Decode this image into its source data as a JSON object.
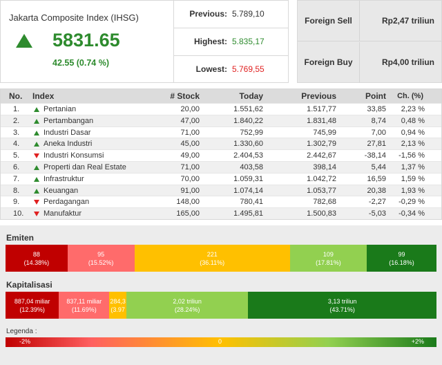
{
  "index": {
    "title": "Jakarta Composite Index (IHSG)",
    "value": "5831.65",
    "change": "42.55 (0.74 %)",
    "direction_icon": "up-triangle-icon"
  },
  "stats": [
    {
      "label": "Previous:",
      "value": "5.789,10",
      "color": "#333333"
    },
    {
      "label": "Highest:",
      "value": "5.835,17",
      "color": "#2e8b2e"
    },
    {
      "label": "Lowest:",
      "value": "5.769,55",
      "color": "#e02020"
    }
  ],
  "foreign": [
    {
      "label": "Foreign Sell",
      "value": "Rp2,47 triliun"
    },
    {
      "label": "Foreign Buy",
      "value": "Rp4,00 triliun"
    }
  ],
  "table": {
    "headers": {
      "no": "No.",
      "index": "Index",
      "stock": "# Stock",
      "today": "Today",
      "previous": "Previous",
      "point": "Point",
      "ch": "Ch. (%)"
    },
    "rows": [
      {
        "no": "1.",
        "dir": "up",
        "name": "Pertanian",
        "stock": "20,00",
        "today": "1.551,62",
        "previous": "1.517,77",
        "point": "33,85",
        "ch": "2,23 %"
      },
      {
        "no": "2.",
        "dir": "up",
        "name": "Pertambangan",
        "stock": "47,00",
        "today": "1.840,22",
        "previous": "1.831,48",
        "point": "8,74",
        "ch": "0,48 %"
      },
      {
        "no": "3.",
        "dir": "up",
        "name": "Industri Dasar",
        "stock": "71,00",
        "today": "752,99",
        "previous": "745,99",
        "point": "7,00",
        "ch": "0,94 %"
      },
      {
        "no": "4.",
        "dir": "up",
        "name": "Aneka Industri",
        "stock": "45,00",
        "today": "1.330,60",
        "previous": "1.302,79",
        "point": "27,81",
        "ch": "2,13 %"
      },
      {
        "no": "5.",
        "dir": "down",
        "name": "Industri Konsumsi",
        "stock": "49,00",
        "today": "2.404,53",
        "previous": "2.442,67",
        "point": "-38,14",
        "ch": "-1,56 %"
      },
      {
        "no": "6.",
        "dir": "up",
        "name": "Properti dan Real Estate",
        "stock": "71,00",
        "today": "403,58",
        "previous": "398,14",
        "point": "5,44",
        "ch": "1,37 %"
      },
      {
        "no": "7.",
        "dir": "up",
        "name": "Infrastruktur",
        "stock": "70,00",
        "today": "1.059,31",
        "previous": "1.042,72",
        "point": "16,59",
        "ch": "1,59 %"
      },
      {
        "no": "8.",
        "dir": "up",
        "name": "Keuangan",
        "stock": "91,00",
        "today": "1.074,14",
        "previous": "1.053,77",
        "point": "20,38",
        "ch": "1,93 %"
      },
      {
        "no": "9.",
        "dir": "down",
        "name": "Perdagangan",
        "stock": "148,00",
        "today": "780,41",
        "previous": "782,68",
        "point": "-2,27",
        "ch": "-0,29 %"
      },
      {
        "no": "10.",
        "dir": "down",
        "name": "Manufaktur",
        "stock": "165,00",
        "today": "1.495,81",
        "previous": "1.500,83",
        "point": "-5,03",
        "ch": "-0,34 %"
      }
    ]
  },
  "emiten": {
    "title": "Emiten",
    "segments": [
      {
        "value": "88",
        "pct": "(14.38%)",
        "share": 14.38,
        "color": "#c00000"
      },
      {
        "value": "95",
        "pct": "(15.52%)",
        "share": 15.52,
        "color": "#ff6b6b"
      },
      {
        "value": "221",
        "pct": "(36.11%)",
        "share": 36.11,
        "color": "#ffc000"
      },
      {
        "value": "109",
        "pct": "(17.81%)",
        "share": 17.81,
        "color": "#92d050"
      },
      {
        "value": "99",
        "pct": "(16.18%)",
        "share": 16.18,
        "color": "#1a7a1a"
      }
    ]
  },
  "kapitalisasi": {
    "title": "Kapitalisasi",
    "segments": [
      {
        "value": "887,04 miliar",
        "pct": "(12.39%)",
        "share": 12.39,
        "color": "#c00000"
      },
      {
        "value": "837,11 miliar",
        "pct": "(11.69%)",
        "share": 11.69,
        "color": "#ff6b6b"
      },
      {
        "value": "284,3",
        "pct": "(3.97",
        "share": 3.97,
        "color": "#ffc000"
      },
      {
        "value": "2,02 triliun",
        "pct": "(28.24%)",
        "share": 28.24,
        "color": "#92d050"
      },
      {
        "value": "3,13 triliun",
        "pct": "(43.71%)",
        "share": 43.71,
        "color": "#1a7a1a"
      }
    ]
  },
  "legend": {
    "title": "Legenda :",
    "min": "-2%",
    "mid": "0",
    "max": "+2%"
  }
}
